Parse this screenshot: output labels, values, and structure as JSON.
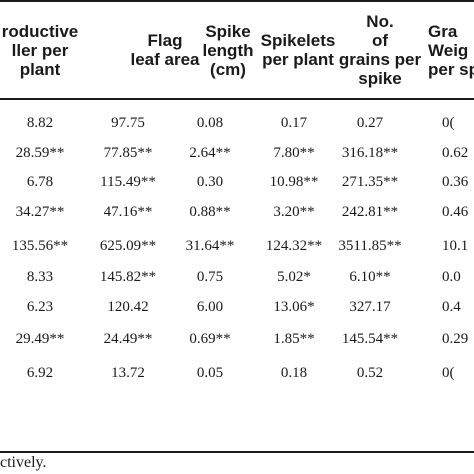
{
  "table": {
    "headers": [
      "roductive\nller per\nplant",
      "Flag\nleaf area",
      "Spike\nlength\n(cm)",
      "Spikelets\nper plant",
      "No.\nof\ngrains per\nspike",
      "Gra\nWeig\nper sp"
    ],
    "rows": [
      [
        "8.82",
        "97.75",
        "0.08",
        "0.17",
        "0.27",
        "0("
      ],
      [
        "28.59**",
        "77.85**",
        "2.64**",
        "7.80**",
        "316.18**",
        "0.62"
      ],
      [
        "6.78",
        "115.49**",
        "0.30",
        "10.98**",
        "271.35**",
        "0.36"
      ],
      [
        "34.27**",
        "47.16**",
        "0.88**",
        "3.20**",
        "242.81**",
        "0.46"
      ],
      [
        "135.56**",
        "625.09**",
        "31.64**",
        "124.32**",
        "3511.85**",
        "10.1"
      ],
      [
        "8.33",
        "145.82**",
        "0.75",
        "5.02*",
        "6.10**",
        "0.0"
      ],
      [
        "6.23",
        "120.42",
        "6.00",
        "13.06*",
        "327.17",
        "0.4"
      ],
      [
        "29.49**",
        "24.49**",
        "0.69**",
        "1.85**",
        "145.54**",
        "0.29"
      ],
      [
        "6.92",
        "13.72",
        "0.05",
        "0.18",
        "0.52",
        "0("
      ]
    ]
  },
  "footnote": "ctively."
}
